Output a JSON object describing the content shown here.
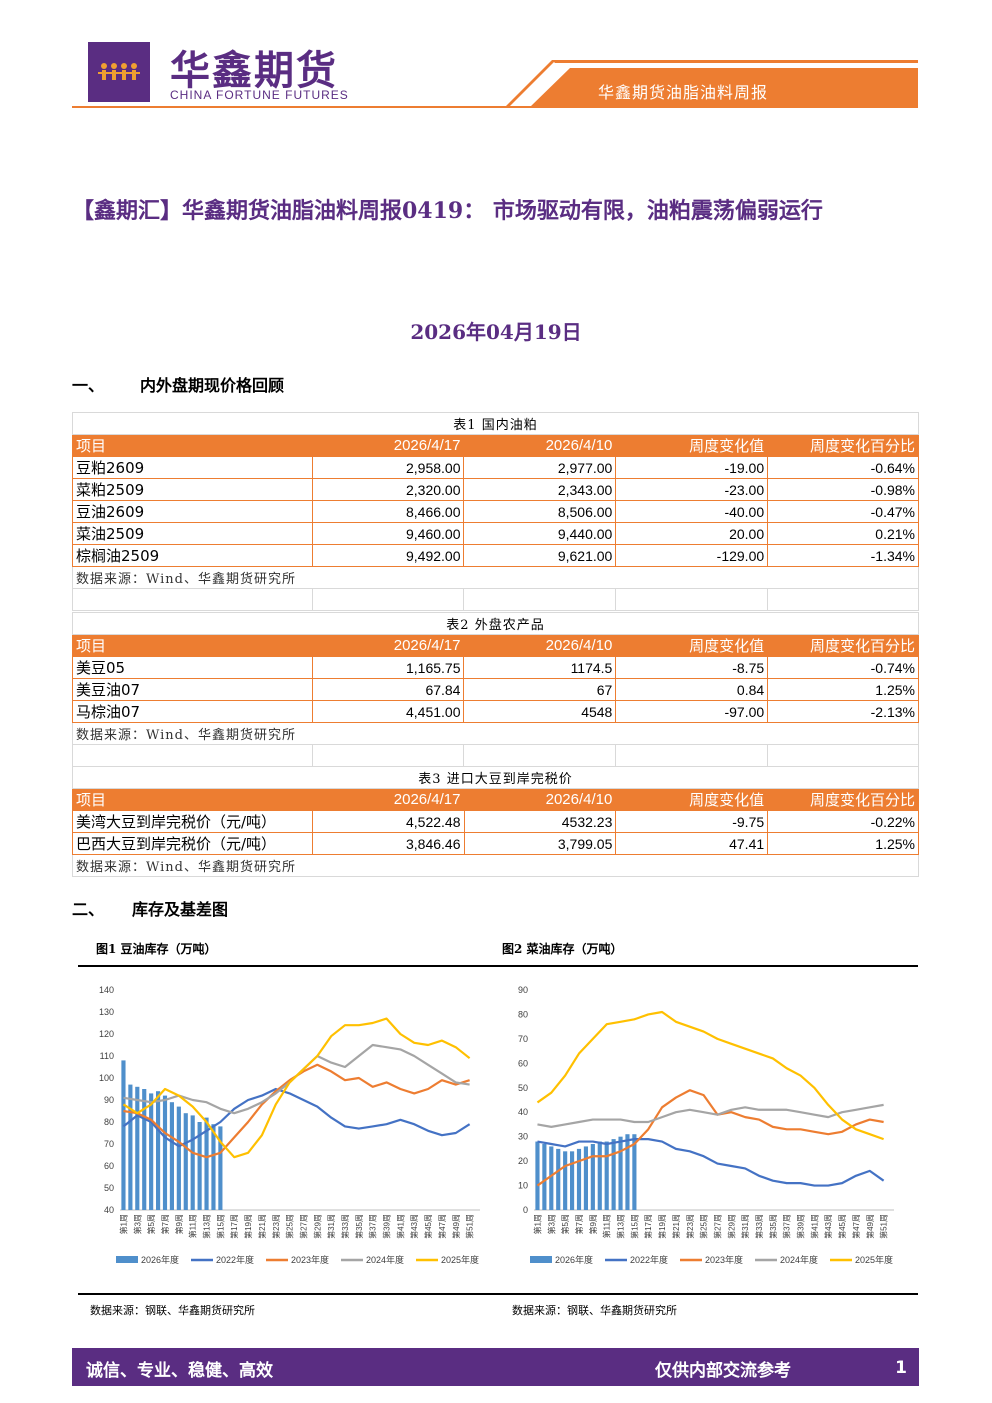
{
  "header": {
    "logo_cn": "华鑫期货",
    "logo_en": "CHINA FORTUNE FUTURES",
    "report_name": "华鑫期货油脂油料周报",
    "brand_color": "#5a2d82",
    "accent_color": "#ed7d31"
  },
  "title": "【鑫期汇】华鑫期货油脂油料周报0419： 市场驱动有限，油粕震荡偏弱运行",
  "date": "2026年04月19日",
  "section1": {
    "num": "一、",
    "label": "内外盘期现价格回顾"
  },
  "section2": {
    "num": "二、",
    "label": "库存及基差图"
  },
  "tables": [
    {
      "caption": "表1 国内油粕",
      "headers": [
        "项目",
        "2026/4/17",
        "2026/4/10",
        "周度变化值",
        "周度变化百分比"
      ],
      "rows": [
        [
          "豆粕2609",
          "2,958.00",
          "2,977.00",
          "-19.00",
          "-0.64%"
        ],
        [
          "菜粕2509",
          "2,320.00",
          "2,343.00",
          "-23.00",
          "-0.98%"
        ],
        [
          "豆油2609",
          "8,466.00",
          "8,506.00",
          "-40.00",
          "-0.47%"
        ],
        [
          "菜油2509",
          "9,460.00",
          "9,440.00",
          "20.00",
          "0.21%"
        ],
        [
          "棕榈油2509",
          "9,492.00",
          "9,621.00",
          "-129.00",
          "-1.34%"
        ]
      ],
      "source": "数据来源：Wind、华鑫期货研究所"
    },
    {
      "caption": "表2 外盘农产品",
      "headers": [
        "项目",
        "2026/4/17",
        "2026/4/10",
        "周度变化值",
        "周度变化百分比"
      ],
      "rows": [
        [
          "美豆05",
          "1,165.75",
          "1174.5",
          "-8.75",
          "-0.74%"
        ],
        [
          "美豆油07",
          "67.84",
          "67",
          "0.84",
          "1.25%"
        ],
        [
          "马棕油07",
          "4,451.00",
          "4548",
          "-97.00",
          "-2.13%"
        ]
      ],
      "source": "数据来源：Wind、华鑫期货研究所"
    },
    {
      "caption": "表3 进口大豆到岸完税价",
      "headers": [
        "项目",
        "2026/4/17",
        "2026/4/10",
        "周度变化值",
        "周度变化百分比"
      ],
      "rows": [
        [
          "美湾大豆到岸完税价（元/吨）",
          "4,522.48",
          "4532.23",
          "-9.75",
          "-0.22%"
        ],
        [
          "巴西大豆到岸完税价（元/吨）",
          "3,846.46",
          "3,799.05",
          "47.41",
          "1.25%"
        ]
      ],
      "source": "数据来源：Wind、华鑫期货研究所"
    }
  ],
  "figures": [
    {
      "title": "图1 豆油库存（万吨）",
      "source": "数据来源：钢联、华鑫期货研究所"
    },
    {
      "title": "图2 菜油库存（万吨）",
      "source": "数据来源：钢联、华鑫期货研究所"
    }
  ],
  "chart_data": [
    {
      "type": "line",
      "title": "图1 豆油库存（万吨）",
      "ylim": [
        40,
        140
      ],
      "yticks": [
        40,
        50,
        60,
        70,
        80,
        90,
        100,
        110,
        120,
        130,
        140
      ],
      "x": [
        "第1周",
        "第3周",
        "第5周",
        "第7周",
        "第9周",
        "第11周",
        "第13周",
        "第15周",
        "第17周",
        "第19周",
        "第21周",
        "第23周",
        "第25周",
        "第27周",
        "第29周",
        "第31周",
        "第33周",
        "第35周",
        "第37周",
        "第39周",
        "第41周",
        "第43周",
        "第45周",
        "第47周",
        "第49周",
        "第51周"
      ],
      "bar_series": {
        "name": "2026年度",
        "color": "#4f8fcb",
        "values": [
          108,
          97,
          96,
          95,
          93,
          94,
          92,
          89,
          87,
          84,
          83,
          80,
          82,
          79,
          78
        ]
      },
      "series": [
        {
          "name": "2022年度",
          "color": "#4472c4",
          "values": [
            78,
            83,
            80,
            73,
            69,
            72,
            76,
            80,
            86,
            90,
            92,
            95,
            93,
            90,
            87,
            82,
            78,
            77,
            78,
            79,
            81,
            79,
            76,
            74,
            75,
            79
          ]
        },
        {
          "name": "2023年度",
          "color": "#ed7d31",
          "values": [
            85,
            84,
            81,
            75,
            71,
            66,
            64,
            66,
            73,
            80,
            88,
            94,
            99,
            103,
            106,
            103,
            99,
            100,
            96,
            98,
            95,
            93,
            95,
            99,
            97,
            99
          ]
        },
        {
          "name": "2024年度",
          "color": "#a5a5a5",
          "values": [
            91,
            90,
            89,
            90,
            92,
            90,
            89,
            86,
            84,
            86,
            89,
            93,
            98,
            104,
            110,
            107,
            105,
            110,
            115,
            114,
            113,
            110,
            106,
            102,
            98,
            97
          ]
        },
        {
          "name": "2025年度",
          "color": "#ffc000",
          "values": [
            88,
            84,
            88,
            95,
            92,
            87,
            80,
            71,
            64,
            66,
            74,
            88,
            98,
            104,
            110,
            119,
            124,
            124,
            125,
            127,
            120,
            116,
            115,
            117,
            114,
            109
          ]
        }
      ]
    },
    {
      "type": "line",
      "title": "图2 菜油库存（万吨）",
      "ylim": [
        0,
        90
      ],
      "yticks": [
        0,
        10,
        20,
        30,
        40,
        50,
        60,
        70,
        80,
        90
      ],
      "x": [
        "第1周",
        "第3周",
        "第5周",
        "第7周",
        "第9周",
        "第11周",
        "第13周",
        "第15周",
        "第17周",
        "第19周",
        "第21周",
        "第23周",
        "第25周",
        "第27周",
        "第29周",
        "第31周",
        "第33周",
        "第35周",
        "第37周",
        "第39周",
        "第41周",
        "第43周",
        "第45周",
        "第47周",
        "第49周",
        "第51周"
      ],
      "bar_series": {
        "name": "2026年度",
        "color": "#4f8fcb",
        "values": [
          28,
          27,
          26,
          25,
          24,
          24,
          25,
          26,
          27,
          28,
          28,
          29,
          30,
          31,
          31
        ]
      },
      "series": [
        {
          "name": "2022年度",
          "color": "#4472c4",
          "values": [
            28,
            27,
            26,
            28,
            28,
            27,
            28,
            29,
            29,
            28,
            25,
            24,
            22,
            19,
            18,
            17,
            14,
            12,
            11,
            11,
            10,
            10,
            11,
            14,
            16,
            12
          ]
        },
        {
          "name": "2023年度",
          "color": "#ed7d31",
          "values": [
            10,
            14,
            18,
            20,
            22,
            22,
            24,
            27,
            33,
            42,
            46,
            49,
            47,
            39,
            40,
            38,
            37,
            34,
            33,
            33,
            32,
            31,
            32,
            35,
            37,
            36
          ]
        },
        {
          "name": "2024年度",
          "color": "#a5a5a5",
          "values": [
            35,
            34,
            35,
            36,
            37,
            37,
            37,
            36,
            36,
            38,
            40,
            41,
            40,
            39,
            41,
            42,
            41,
            41,
            41,
            40,
            39,
            38,
            40,
            41,
            42,
            43
          ]
        },
        {
          "name": "2025年度",
          "color": "#ffc000",
          "values": [
            44,
            48,
            55,
            64,
            70,
            76,
            77,
            78,
            80,
            81,
            77,
            75,
            73,
            70,
            68,
            66,
            64,
            62,
            58,
            55,
            50,
            43,
            37,
            33,
            31,
            29
          ]
        }
      ]
    }
  ],
  "footer": {
    "slogan": "诚信、专业、稳健、高效",
    "note": "仅供内部交流参考",
    "page": "1"
  }
}
